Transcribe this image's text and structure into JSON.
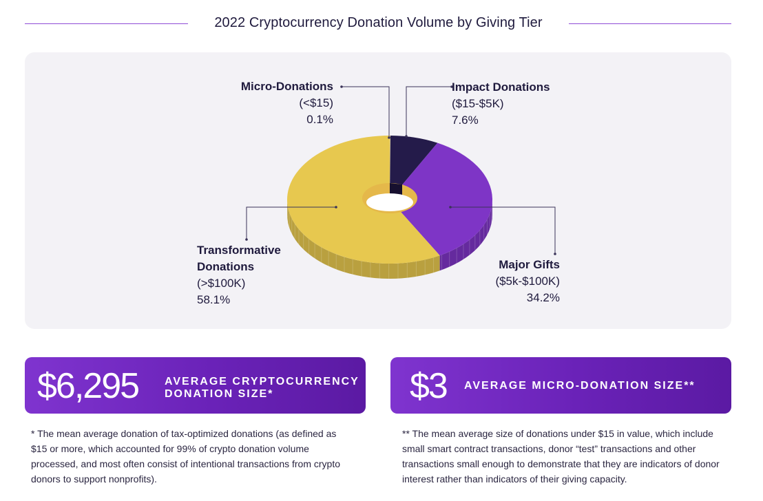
{
  "header": {
    "title": "2022 Cryptocurrency Donation Volume by Giving Tier"
  },
  "chart_data": {
    "type": "pie",
    "title": "2022 Cryptocurrency Donation Volume by Giving Tier",
    "style": "3D donut",
    "slices": [
      {
        "name": "Micro-Donations",
        "range": "(<$15)",
        "value": 0.1,
        "label": "0.1%",
        "color": "#f0e3a0"
      },
      {
        "name": "Impact Donations",
        "range": "($15-$5K)",
        "value": 7.6,
        "label": "7.6%",
        "color": "#241b4a"
      },
      {
        "name": "Major Gifts",
        "range": "($5k-$100K)",
        "value": 34.2,
        "label": "34.2%",
        "color": "#7e35c6"
      },
      {
        "name": "Transformative Donations",
        "range": "(>$100K)",
        "value": 58.1,
        "label": "58.1%",
        "color": "#e7c84f"
      }
    ]
  },
  "labels": {
    "micro": {
      "name": "Micro-Donations",
      "range": "(<$15)",
      "pct": "0.1%"
    },
    "impact": {
      "name": "Impact Donations",
      "range": "($15-$5K)",
      "pct": "7.6%"
    },
    "major": {
      "name": "Major Gifts",
      "range": "($5k-$100K)",
      "pct": "34.2%"
    },
    "transformative": {
      "name1": "Transformative",
      "name2": "Donations",
      "range": "(>$100K)",
      "pct": "58.1%"
    }
  },
  "stats": [
    {
      "value": "$6,295",
      "caption": "Average cryptocurrency donation size*"
    },
    {
      "value": "$3",
      "caption": "Average micro-donation size**"
    }
  ],
  "footnotes": {
    "a": "* The mean average donation of tax-optimized donations (as defined as $15 or more, which accounted for 99% of crypto donation volume processed, and most often consist of intentional transactions from crypto donors to support nonprofits).",
    "b": "** The mean average size of donations under $15 in value, which include small smart contract transactions, donor “test” transactions and other transactions small enough to demonstrate that they are indicators of donor interest rather than indicators of their giving capacity."
  },
  "colors": {
    "accent": "#7f34cf",
    "panel": "#f3f2f6",
    "text": "#1f1a3d"
  }
}
